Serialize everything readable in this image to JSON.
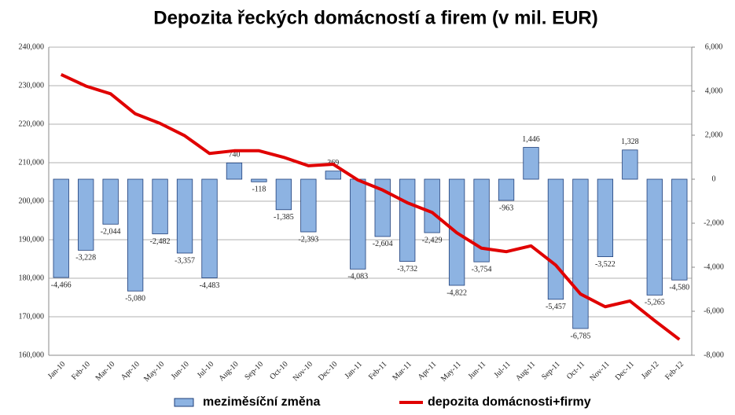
{
  "chart_data": {
    "type": "bar",
    "title": "Depozita řeckých domácností a firem (v mil. EUR)",
    "categories": [
      "Jan-10",
      "Feb-10",
      "Mar-10",
      "Apr-10",
      "May-10",
      "Jun-10",
      "Jul-10",
      "Aug-10",
      "Sep-10",
      "Oct-10",
      "Nov-10",
      "Dec-10",
      "Jan-11",
      "Feb-11",
      "Mar-11",
      "Apr-11",
      "May-11",
      "Jun-11",
      "Jul-11",
      "Aug-11",
      "Sep-11",
      "Oct-11",
      "Nov-11",
      "Dec-11",
      "Jan-12",
      "Feb-12"
    ],
    "series": [
      {
        "name": "meziměsíční změna",
        "type": "bar",
        "axis": "y2",
        "color": "#8db3e2",
        "stroke": "#1f3f7a",
        "values": [
          -4466,
          -3228,
          -2044,
          -5080,
          -2482,
          -3357,
          -4483,
          740,
          -118,
          -1385,
          -2393,
          369,
          -4083,
          -2604,
          -3732,
          -2429,
          -4822,
          -3754,
          -963,
          1446,
          -5457,
          -6785,
          -3522,
          1328,
          -5265,
          -4580
        ],
        "value_labels": [
          "-4,466",
          "-3,228",
          "-2,044",
          "-5,080",
          "-2,482",
          "-3,357",
          "-4,483",
          "740",
          "-118",
          "-1,385",
          "-2,393",
          "369",
          "-4,083",
          "-2,604",
          "-3,732",
          "-2,429",
          "-4,822",
          "-3,754",
          "-963",
          "1,446",
          "-5,457",
          "-6,785",
          "-3,522",
          "1,328",
          "-5,265",
          "-4,580"
        ]
      },
      {
        "name": "depozita domácnosti+firmy",
        "type": "line",
        "color": "#e00000",
        "values": [
          232900,
          229900,
          227900,
          222700,
          220200,
          217000,
          212400,
          213100,
          213100,
          211400,
          209200,
          209600,
          205500,
          202900,
          199600,
          197100,
          191800,
          187800,
          186900,
          188400,
          183400,
          175900,
          172600,
          174100,
          169000,
          164100
        ]
      }
    ],
    "ylim": [
      160000,
      240000
    ],
    "yticks": [
      {
        "value": 160000,
        "label": "160,000"
      },
      {
        "value": 170000,
        "label": "170,000"
      },
      {
        "value": 180000,
        "label": "180,000"
      },
      {
        "value": 190000,
        "label": "190,000"
      },
      {
        "value": 200000,
        "label": "200,000"
      },
      {
        "value": 210000,
        "label": "210,000"
      },
      {
        "value": 220000,
        "label": "220,000"
      },
      {
        "value": 230000,
        "label": "230,000"
      },
      {
        "value": 240000,
        "label": "240,000"
      }
    ],
    "y2lim": [
      -8000,
      6000
    ],
    "y2ticks": [
      {
        "value": -8000,
        "label": "-8,000"
      },
      {
        "value": -6000,
        "label": "-6,000"
      },
      {
        "value": -4000,
        "label": "-4,000"
      },
      {
        "value": -2000,
        "label": "-2,000"
      },
      0,
      {
        "value": 2000,
        "label": "2,000"
      },
      {
        "value": 4000,
        "label": "4,000"
      },
      {
        "value": 6000,
        "label": "6,000"
      }
    ],
    "grid": true
  }
}
